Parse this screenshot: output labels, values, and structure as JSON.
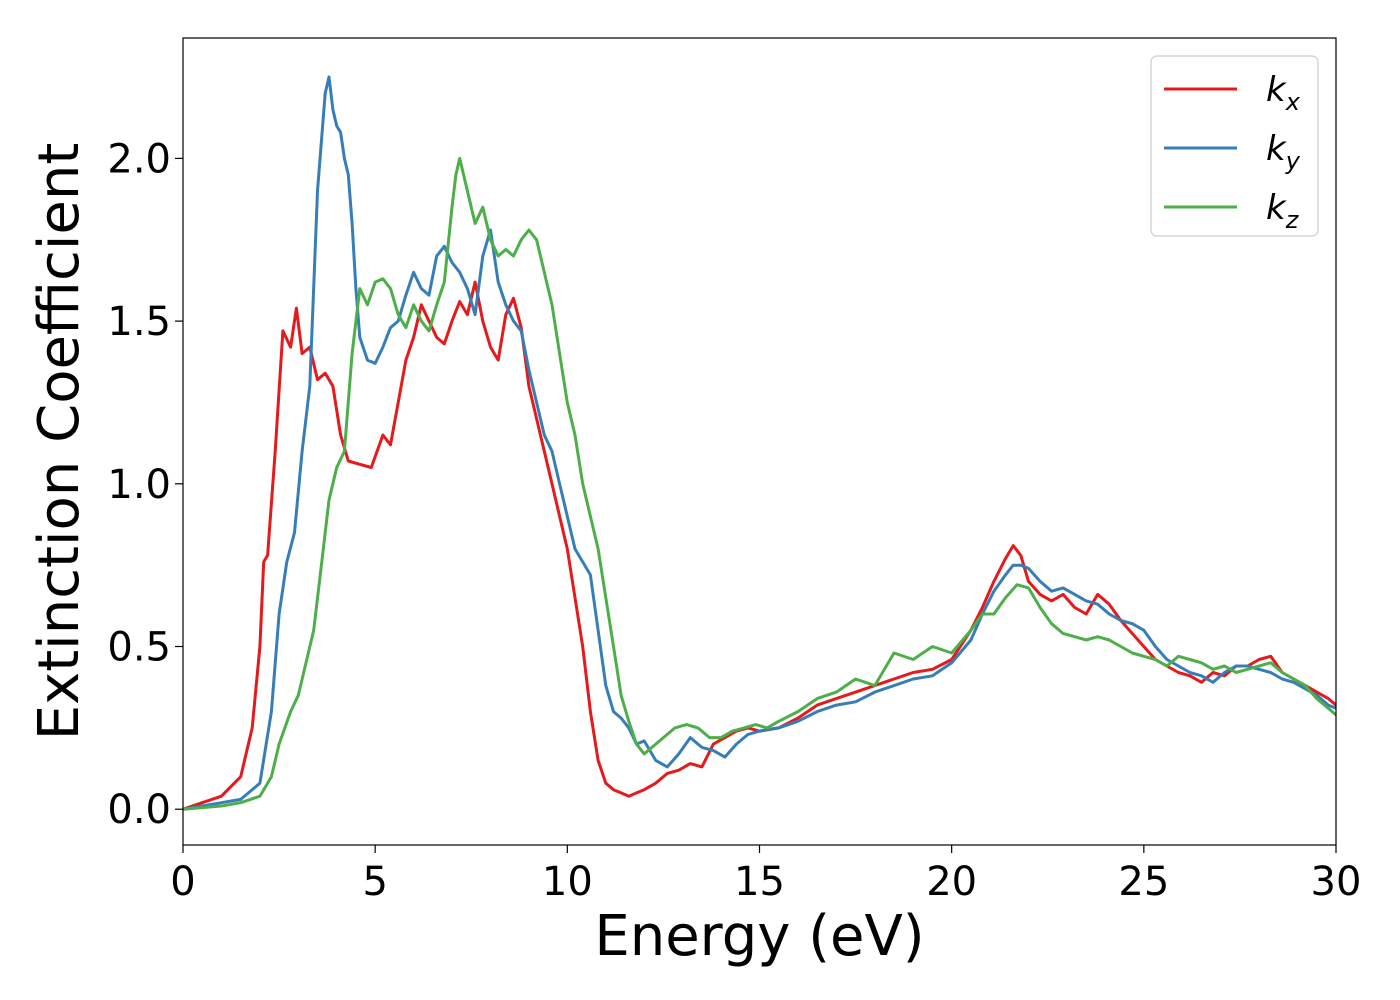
{
  "chart_data": {
    "type": "line",
    "xlabel": "Energy (eV)",
    "ylabel": "Extinction Coefficient",
    "xlim": [
      0,
      30
    ],
    "ylim": [
      -0.11,
      2.37
    ],
    "xticks": [
      0,
      5,
      10,
      15,
      20,
      25,
      30
    ],
    "xtick_labels": [
      "0",
      "5",
      "10",
      "15",
      "20",
      "25",
      "30"
    ],
    "yticks": [
      0.0,
      0.5,
      1.0,
      1.5,
      2.0
    ],
    "ytick_labels": [
      "0.0",
      "0.5",
      "1.0",
      "1.5",
      "2.0"
    ],
    "grid": false,
    "legend_position": "top-right",
    "series": [
      {
        "name": "k_x",
        "label_main": "k",
        "label_sub": "x",
        "color": "#e41a1c",
        "x": [
          0,
          0.5,
          1.0,
          1.5,
          1.8,
          2.0,
          2.1,
          2.2,
          2.4,
          2.6,
          2.8,
          2.95,
          3.1,
          3.3,
          3.5,
          3.7,
          3.9,
          4.1,
          4.3,
          4.6,
          4.9,
          5.2,
          5.4,
          5.6,
          5.8,
          6.0,
          6.2,
          6.4,
          6.6,
          6.8,
          7.0,
          7.2,
          7.4,
          7.6,
          7.8,
          8.0,
          8.2,
          8.4,
          8.6,
          8.8,
          9.0,
          9.2,
          9.4,
          9.6,
          9.8,
          10.0,
          10.2,
          10.4,
          10.6,
          10.8,
          11.0,
          11.2,
          11.4,
          11.6,
          11.8,
          12.0,
          12.3,
          12.6,
          12.9,
          13.2,
          13.5,
          13.8,
          14.1,
          14.4,
          14.7,
          15.0,
          15.5,
          16.0,
          16.5,
          17.0,
          17.5,
          18.0,
          18.5,
          19.0,
          19.5,
          20.0,
          20.5,
          20.8,
          21.1,
          21.4,
          21.6,
          21.8,
          22.0,
          22.3,
          22.6,
          22.9,
          23.2,
          23.5,
          23.8,
          24.1,
          24.4,
          24.7,
          25.0,
          25.3,
          25.6,
          25.9,
          26.2,
          26.5,
          26.8,
          27.1,
          27.4,
          27.7,
          28.0,
          28.3,
          28.6,
          28.9,
          29.2,
          29.5,
          29.8,
          30.0
        ],
        "y": [
          0.0,
          0.02,
          0.04,
          0.1,
          0.25,
          0.5,
          0.76,
          0.78,
          1.1,
          1.47,
          1.42,
          1.54,
          1.4,
          1.42,
          1.32,
          1.34,
          1.3,
          1.15,
          1.07,
          1.06,
          1.05,
          1.15,
          1.12,
          1.25,
          1.38,
          1.45,
          1.55,
          1.5,
          1.45,
          1.43,
          1.5,
          1.56,
          1.52,
          1.62,
          1.5,
          1.42,
          1.38,
          1.52,
          1.57,
          1.48,
          1.3,
          1.2,
          1.1,
          1.0,
          0.9,
          0.8,
          0.65,
          0.5,
          0.3,
          0.15,
          0.08,
          0.06,
          0.05,
          0.04,
          0.05,
          0.06,
          0.08,
          0.11,
          0.12,
          0.14,
          0.13,
          0.2,
          0.22,
          0.24,
          0.25,
          0.24,
          0.25,
          0.28,
          0.32,
          0.34,
          0.36,
          0.38,
          0.4,
          0.42,
          0.43,
          0.46,
          0.55,
          0.62,
          0.7,
          0.77,
          0.81,
          0.78,
          0.7,
          0.66,
          0.64,
          0.66,
          0.62,
          0.6,
          0.66,
          0.63,
          0.58,
          0.54,
          0.5,
          0.46,
          0.44,
          0.42,
          0.41,
          0.39,
          0.42,
          0.41,
          0.44,
          0.44,
          0.46,
          0.47,
          0.42,
          0.4,
          0.38,
          0.36,
          0.34,
          0.32
        ]
      },
      {
        "name": "k_y",
        "label_main": "k",
        "label_sub": "y",
        "color": "#377eb8",
        "x": [
          0,
          0.5,
          1.0,
          1.5,
          2.0,
          2.3,
          2.5,
          2.7,
          2.9,
          3.1,
          3.3,
          3.5,
          3.7,
          3.8,
          3.9,
          4.0,
          4.1,
          4.2,
          4.3,
          4.4,
          4.5,
          4.6,
          4.8,
          5.0,
          5.2,
          5.4,
          5.6,
          5.8,
          6.0,
          6.2,
          6.4,
          6.6,
          6.8,
          7.0,
          7.2,
          7.4,
          7.6,
          7.8,
          8.0,
          8.2,
          8.4,
          8.6,
          8.8,
          9.0,
          9.2,
          9.4,
          9.6,
          9.8,
          10.0,
          10.2,
          10.4,
          10.6,
          10.8,
          11.0,
          11.2,
          11.4,
          11.6,
          11.8,
          12.0,
          12.3,
          12.6,
          12.9,
          13.2,
          13.5,
          13.8,
          14.1,
          14.4,
          14.7,
          15.0,
          15.5,
          16.0,
          16.5,
          17.0,
          17.5,
          18.0,
          18.5,
          19.0,
          19.5,
          20.0,
          20.5,
          20.8,
          21.1,
          21.4,
          21.6,
          21.8,
          22.0,
          22.3,
          22.6,
          22.9,
          23.2,
          23.5,
          23.8,
          24.1,
          24.4,
          24.7,
          25.0,
          25.3,
          25.6,
          25.9,
          26.2,
          26.5,
          26.8,
          27.1,
          27.4,
          27.7,
          28.0,
          28.3,
          28.6,
          28.9,
          29.2,
          29.5,
          29.8,
          30.0
        ],
        "y": [
          0.0,
          0.01,
          0.02,
          0.03,
          0.08,
          0.3,
          0.6,
          0.76,
          0.85,
          1.1,
          1.3,
          1.9,
          2.2,
          2.25,
          2.15,
          2.1,
          2.08,
          2.0,
          1.95,
          1.8,
          1.6,
          1.45,
          1.38,
          1.37,
          1.42,
          1.48,
          1.5,
          1.58,
          1.65,
          1.6,
          1.58,
          1.7,
          1.73,
          1.68,
          1.65,
          1.6,
          1.52,
          1.7,
          1.78,
          1.62,
          1.55,
          1.5,
          1.47,
          1.35,
          1.25,
          1.15,
          1.1,
          1.0,
          0.9,
          0.8,
          0.76,
          0.72,
          0.55,
          0.38,
          0.3,
          0.28,
          0.25,
          0.2,
          0.21,
          0.15,
          0.13,
          0.17,
          0.22,
          0.19,
          0.18,
          0.16,
          0.2,
          0.23,
          0.24,
          0.25,
          0.27,
          0.3,
          0.32,
          0.33,
          0.36,
          0.38,
          0.4,
          0.41,
          0.45,
          0.52,
          0.6,
          0.67,
          0.72,
          0.75,
          0.75,
          0.74,
          0.7,
          0.67,
          0.68,
          0.66,
          0.64,
          0.63,
          0.6,
          0.58,
          0.57,
          0.55,
          0.5,
          0.46,
          0.44,
          0.42,
          0.41,
          0.39,
          0.42,
          0.44,
          0.44,
          0.43,
          0.42,
          0.4,
          0.39,
          0.37,
          0.35,
          0.32,
          0.31
        ]
      },
      {
        "name": "k_z",
        "label_main": "k",
        "label_sub": "z",
        "color": "#4daf4a",
        "x": [
          0,
          0.5,
          1.0,
          1.5,
          2.0,
          2.3,
          2.5,
          2.8,
          3.0,
          3.2,
          3.4,
          3.6,
          3.8,
          4.0,
          4.2,
          4.4,
          4.6,
          4.8,
          5.0,
          5.2,
          5.4,
          5.6,
          5.8,
          6.0,
          6.2,
          6.4,
          6.6,
          6.8,
          7.0,
          7.1,
          7.2,
          7.4,
          7.6,
          7.8,
          8.0,
          8.2,
          8.4,
          8.6,
          8.8,
          9.0,
          9.2,
          9.4,
          9.6,
          9.8,
          10.0,
          10.2,
          10.4,
          10.6,
          10.8,
          11.0,
          11.2,
          11.4,
          11.6,
          11.8,
          12.0,
          12.2,
          12.5,
          12.8,
          13.1,
          13.4,
          13.7,
          14.0,
          14.3,
          14.6,
          14.9,
          15.2,
          15.5,
          16.0,
          16.5,
          17.0,
          17.5,
          18.0,
          18.5,
          19.0,
          19.5,
          20.0,
          20.5,
          20.8,
          21.1,
          21.4,
          21.7,
          22.0,
          22.3,
          22.6,
          22.9,
          23.2,
          23.5,
          23.8,
          24.1,
          24.4,
          24.7,
          25.0,
          25.3,
          25.6,
          25.9,
          26.2,
          26.5,
          26.8,
          27.1,
          27.4,
          27.7,
          28.0,
          28.3,
          28.6,
          28.9,
          29.2,
          29.5,
          29.8,
          30.0
        ],
        "y": [
          0.0,
          0.005,
          0.01,
          0.02,
          0.04,
          0.1,
          0.2,
          0.3,
          0.35,
          0.45,
          0.55,
          0.75,
          0.95,
          1.05,
          1.1,
          1.4,
          1.6,
          1.55,
          1.62,
          1.63,
          1.6,
          1.52,
          1.48,
          1.55,
          1.5,
          1.47,
          1.55,
          1.62,
          1.85,
          1.95,
          2.0,
          1.9,
          1.8,
          1.85,
          1.75,
          1.7,
          1.72,
          1.7,
          1.75,
          1.78,
          1.75,
          1.65,
          1.55,
          1.4,
          1.25,
          1.15,
          1.0,
          0.9,
          0.8,
          0.65,
          0.5,
          0.35,
          0.27,
          0.2,
          0.17,
          0.19,
          0.22,
          0.25,
          0.26,
          0.25,
          0.22,
          0.22,
          0.24,
          0.25,
          0.26,
          0.25,
          0.27,
          0.3,
          0.34,
          0.36,
          0.4,
          0.38,
          0.48,
          0.46,
          0.5,
          0.48,
          0.55,
          0.6,
          0.6,
          0.65,
          0.69,
          0.68,
          0.62,
          0.57,
          0.54,
          0.53,
          0.52,
          0.53,
          0.52,
          0.5,
          0.48,
          0.47,
          0.46,
          0.44,
          0.47,
          0.46,
          0.45,
          0.43,
          0.44,
          0.42,
          0.43,
          0.44,
          0.45,
          0.42,
          0.4,
          0.38,
          0.34,
          0.31,
          0.29
        ]
      }
    ]
  }
}
